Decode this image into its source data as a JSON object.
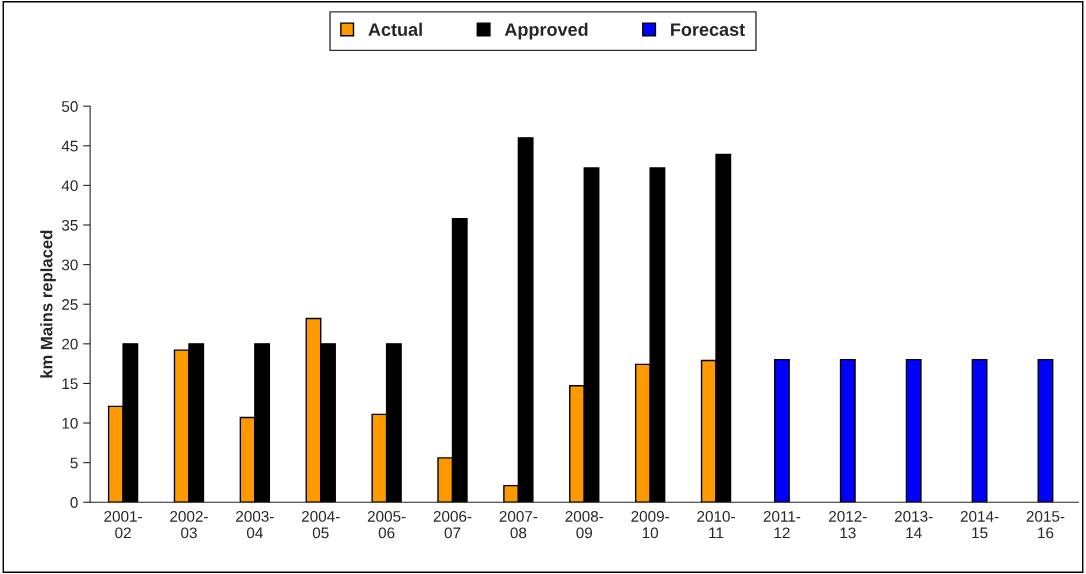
{
  "chart_data": {
    "type": "bar",
    "ylabel": "km Mains replaced",
    "categories": [
      "2001-\n02",
      "2002-\n03",
      "2003-\n04",
      "2004-\n05",
      "2005-\n06",
      "2006-\n07",
      "2007-\n08",
      "2008-\n09",
      "2009-\n10",
      "2010-\n11",
      "2011-\n12",
      "2012-\n13",
      "2013-\n14",
      "2014-\n15",
      "2015-\n16"
    ],
    "series": [
      {
        "name": "Actual",
        "color": "#ff9900",
        "values": [
          12.1,
          19.2,
          10.7,
          23.2,
          11.1,
          5.6,
          2.1,
          14.7,
          17.4,
          17.9,
          null,
          null,
          null,
          null,
          null
        ]
      },
      {
        "name": "Approved",
        "color": "#000000",
        "values": [
          20,
          20,
          20,
          20,
          20,
          35.8,
          46,
          42.2,
          42.2,
          43.9,
          null,
          null,
          null,
          null,
          null
        ]
      },
      {
        "name": "Forecast",
        "color": "#0000ff",
        "values": [
          null,
          null,
          null,
          null,
          null,
          null,
          null,
          null,
          null,
          null,
          18,
          18,
          18,
          18,
          18
        ]
      }
    ],
    "ylim": [
      0,
      50
    ],
    "yticks": [
      0,
      5,
      10,
      15,
      20,
      25,
      30,
      35,
      40,
      45,
      50
    ],
    "grid": false,
    "legend": "top"
  }
}
